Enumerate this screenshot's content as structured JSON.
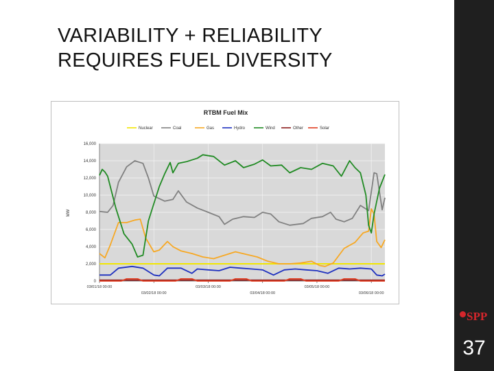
{
  "slide": {
    "title_lines": [
      "VARIABILITY + RELIABILITY",
      "REQUIRES FUEL DIVERSITY"
    ],
    "page_number": "37",
    "logo_text": "SPP",
    "colors": {
      "sidebar": "#1f1f1f",
      "logo": "#d6262c"
    }
  },
  "chart_data": {
    "type": "line",
    "title": "RTBM Fuel Mix",
    "xlabel": "",
    "ylabel": "MW",
    "ylim": [
      0,
      16000
    ],
    "yticks": [
      0,
      2000,
      4000,
      6000,
      8000,
      10000,
      12000,
      14000,
      16000
    ],
    "ytick_labels": [
      "0",
      "2,000",
      "4,000",
      "6,000",
      "8,000",
      "10,000",
      "12,000",
      "14,000",
      "16,000"
    ],
    "x_unit": "days since 03/01/18 00:00",
    "xlim": [
      0,
      5.25
    ],
    "xticks": [
      0,
      1,
      2,
      3,
      4,
      5
    ],
    "xtick_labels": [
      "03/01/18 00:00",
      "03/02/18 00:00",
      "03/03/18 00:00",
      "03/04/18 00:00",
      "03/05/18 00:00",
      "03/06/18 00:00"
    ],
    "grid": true,
    "background": "#d9d9d9",
    "legend_position": "top",
    "series": [
      {
        "name": "Nuclear",
        "color": "#f2e600",
        "points": [
          [
            0,
            2000
          ],
          [
            5.25,
            2000
          ]
        ]
      },
      {
        "name": "Coal",
        "color": "#808080",
        "points": [
          [
            0,
            8100
          ],
          [
            0.15,
            8000
          ],
          [
            0.25,
            8800
          ],
          [
            0.35,
            11500
          ],
          [
            0.5,
            13300
          ],
          [
            0.65,
            14000
          ],
          [
            0.8,
            13700
          ],
          [
            0.9,
            12000
          ],
          [
            1.0,
            9900
          ],
          [
            1.2,
            9300
          ],
          [
            1.35,
            9500
          ],
          [
            1.45,
            10500
          ],
          [
            1.6,
            9200
          ],
          [
            1.8,
            8500
          ],
          [
            2.0,
            8000
          ],
          [
            2.2,
            7500
          ],
          [
            2.3,
            6600
          ],
          [
            2.45,
            7200
          ],
          [
            2.65,
            7500
          ],
          [
            2.85,
            7400
          ],
          [
            3.0,
            8000
          ],
          [
            3.15,
            7800
          ],
          [
            3.3,
            6900
          ],
          [
            3.5,
            6500
          ],
          [
            3.75,
            6700
          ],
          [
            3.9,
            7300
          ],
          [
            4.1,
            7500
          ],
          [
            4.25,
            8000
          ],
          [
            4.35,
            7200
          ],
          [
            4.5,
            6900
          ],
          [
            4.65,
            7300
          ],
          [
            4.8,
            8800
          ],
          [
            4.95,
            8200
          ],
          [
            5.05,
            12600
          ],
          [
            5.1,
            12500
          ],
          [
            5.2,
            8300
          ],
          [
            5.25,
            9700
          ]
        ]
      },
      {
        "name": "Gas",
        "color": "#f7a823",
        "points": [
          [
            0,
            3200
          ],
          [
            0.1,
            2700
          ],
          [
            0.2,
            4200
          ],
          [
            0.35,
            6800
          ],
          [
            0.5,
            6800
          ],
          [
            0.65,
            7100
          ],
          [
            0.75,
            7200
          ],
          [
            0.85,
            5000
          ],
          [
            1.0,
            3400
          ],
          [
            1.1,
            3600
          ],
          [
            1.25,
            4600
          ],
          [
            1.35,
            4000
          ],
          [
            1.5,
            3500
          ],
          [
            1.7,
            3200
          ],
          [
            1.9,
            2800
          ],
          [
            2.1,
            2600
          ],
          [
            2.3,
            3000
          ],
          [
            2.5,
            3400
          ],
          [
            2.7,
            3100
          ],
          [
            2.9,
            2800
          ],
          [
            3.1,
            2300
          ],
          [
            3.3,
            2000
          ],
          [
            3.5,
            2000
          ],
          [
            3.7,
            2100
          ],
          [
            3.9,
            2300
          ],
          [
            4.05,
            1800
          ],
          [
            4.15,
            1700
          ],
          [
            4.3,
            2100
          ],
          [
            4.5,
            3800
          ],
          [
            4.7,
            4500
          ],
          [
            4.85,
            5600
          ],
          [
            4.95,
            5800
          ],
          [
            5.0,
            8400
          ],
          [
            5.05,
            7800
          ],
          [
            5.1,
            4600
          ],
          [
            5.18,
            3900
          ],
          [
            5.25,
            4800
          ]
        ]
      },
      {
        "name": "Hydro",
        "color": "#1d2fbf",
        "points": [
          [
            0,
            700
          ],
          [
            0.2,
            700
          ],
          [
            0.35,
            1500
          ],
          [
            0.6,
            1700
          ],
          [
            0.8,
            1500
          ],
          [
            1.0,
            700
          ],
          [
            1.1,
            600
          ],
          [
            1.25,
            1500
          ],
          [
            1.5,
            1500
          ],
          [
            1.7,
            900
          ],
          [
            1.8,
            1400
          ],
          [
            2.0,
            1300
          ],
          [
            2.2,
            1200
          ],
          [
            2.4,
            1600
          ],
          [
            2.6,
            1500
          ],
          [
            2.8,
            1400
          ],
          [
            3.0,
            1300
          ],
          [
            3.2,
            700
          ],
          [
            3.4,
            1300
          ],
          [
            3.6,
            1400
          ],
          [
            3.8,
            1300
          ],
          [
            4.0,
            1200
          ],
          [
            4.2,
            900
          ],
          [
            4.4,
            1500
          ],
          [
            4.6,
            1400
          ],
          [
            4.8,
            1500
          ],
          [
            5.0,
            1400
          ],
          [
            5.1,
            700
          ],
          [
            5.2,
            600
          ],
          [
            5.25,
            800
          ]
        ]
      },
      {
        "name": "Wind",
        "color": "#1f8a22",
        "points": [
          [
            0,
            12300
          ],
          [
            0.05,
            13000
          ],
          [
            0.1,
            12700
          ],
          [
            0.15,
            12200
          ],
          [
            0.3,
            8500
          ],
          [
            0.45,
            5500
          ],
          [
            0.6,
            4300
          ],
          [
            0.7,
            2800
          ],
          [
            0.8,
            3000
          ],
          [
            0.9,
            7000
          ],
          [
            1.0,
            9000
          ],
          [
            1.1,
            11000
          ],
          [
            1.2,
            12500
          ],
          [
            1.3,
            13800
          ],
          [
            1.35,
            12600
          ],
          [
            1.45,
            13700
          ],
          [
            1.6,
            13900
          ],
          [
            1.8,
            14300
          ],
          [
            1.9,
            14700
          ],
          [
            2.1,
            14500
          ],
          [
            2.3,
            13500
          ],
          [
            2.5,
            14000
          ],
          [
            2.65,
            13200
          ],
          [
            2.85,
            13600
          ],
          [
            3.0,
            14100
          ],
          [
            3.15,
            13400
          ],
          [
            3.35,
            13500
          ],
          [
            3.5,
            12600
          ],
          [
            3.7,
            13200
          ],
          [
            3.9,
            13000
          ],
          [
            4.1,
            13700
          ],
          [
            4.3,
            13400
          ],
          [
            4.45,
            12200
          ],
          [
            4.6,
            14000
          ],
          [
            4.7,
            13200
          ],
          [
            4.8,
            12600
          ],
          [
            4.9,
            10000
          ],
          [
            4.95,
            6500
          ],
          [
            5.0,
            5600
          ],
          [
            5.05,
            7800
          ],
          [
            5.15,
            10800
          ],
          [
            5.25,
            12400
          ]
        ]
      },
      {
        "name": "Other",
        "color": "#8b1a1a",
        "points": [
          [
            0,
            100
          ],
          [
            5.25,
            100
          ]
        ]
      },
      {
        "name": "Solar",
        "color": "#e03a1e",
        "points": [
          [
            0,
            0
          ],
          [
            0.4,
            0
          ],
          [
            0.5,
            250
          ],
          [
            0.7,
            250
          ],
          [
            0.8,
            0
          ],
          [
            1.4,
            0
          ],
          [
            1.5,
            250
          ],
          [
            1.7,
            250
          ],
          [
            1.8,
            0
          ],
          [
            2.4,
            0
          ],
          [
            2.5,
            250
          ],
          [
            2.7,
            250
          ],
          [
            2.8,
            0
          ],
          [
            3.4,
            0
          ],
          [
            3.5,
            250
          ],
          [
            3.7,
            250
          ],
          [
            3.8,
            0
          ],
          [
            4.4,
            0
          ],
          [
            4.5,
            250
          ],
          [
            4.7,
            250
          ],
          [
            4.8,
            0
          ],
          [
            5.25,
            0
          ]
        ]
      }
    ]
  }
}
